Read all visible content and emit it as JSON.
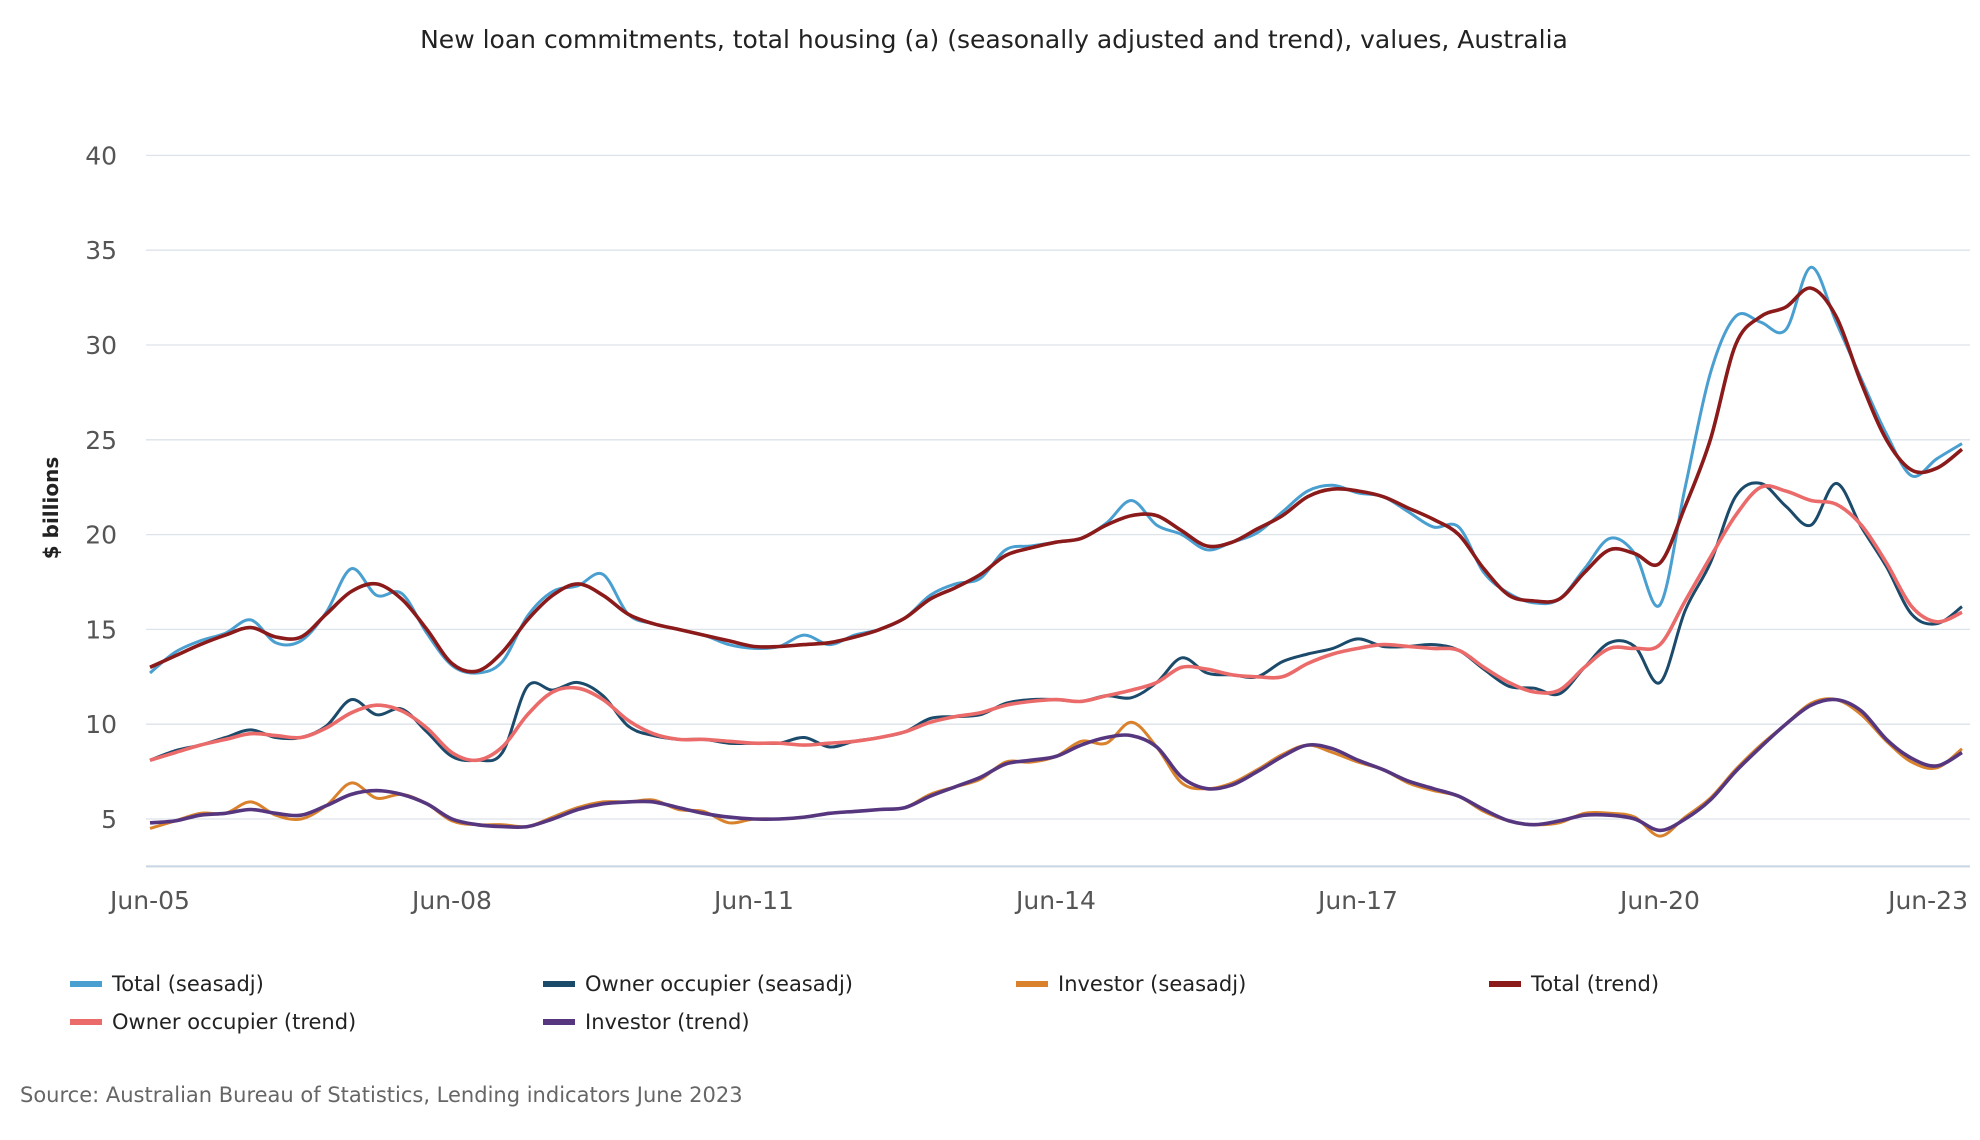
{
  "chart_data": {
    "type": "line",
    "title": "New loan commitments, total housing (a) (seasonally adjusted and trend), values, Australia",
    "xlabel": "",
    "ylabel": "$ billions",
    "ylim": [
      2.5,
      40
    ],
    "yticks": [
      5,
      10,
      15,
      20,
      25,
      30,
      35,
      40
    ],
    "xtick_labels": [
      "Jun-05",
      "Jun-08",
      "Jun-11",
      "Jun-14",
      "Jun-17",
      "Jun-20",
      "Jun-23"
    ],
    "x_frequency": "quarterly, Jun-05 to Jun-23",
    "grid": true,
    "legend_position": "bottom",
    "series": [
      {
        "name": "Total (seasadj)",
        "color": "#4a9fd1",
        "values": [
          12.7,
          13.8,
          14.4,
          14.8,
          15.5,
          14.3,
          14.4,
          15.9,
          18.2,
          16.8,
          16.9,
          14.8,
          13.1,
          12.7,
          13.3,
          15.7,
          17.0,
          17.3,
          17.9,
          15.8,
          15.3,
          15.0,
          14.7,
          14.2,
          14.0,
          14.1,
          14.7,
          14.2,
          14.7,
          15.0,
          15.6,
          16.8,
          17.4,
          17.7,
          19.2,
          19.4,
          19.6,
          19.8,
          20.6,
          21.8,
          20.5,
          20.0,
          19.2,
          19.6,
          20.1,
          21.2,
          22.3,
          22.6,
          22.2,
          22.0,
          21.2,
          20.4,
          20.4,
          18.0,
          16.9,
          16.4,
          16.6,
          18.2,
          19.8,
          19.0,
          16.3,
          22.5,
          28.5,
          31.5,
          31.2,
          30.8,
          34.1,
          31.2,
          28.2,
          25.3,
          23.1,
          24.0,
          24.8
        ]
      },
      {
        "name": "Owner occupier (seasadj)",
        "color": "#1b4a6b",
        "values": [
          8.1,
          8.6,
          8.9,
          9.3,
          9.7,
          9.3,
          9.3,
          9.9,
          11.3,
          10.5,
          10.8,
          9.6,
          8.3,
          8.1,
          8.5,
          12.0,
          11.8,
          12.2,
          11.5,
          9.9,
          9.4,
          9.2,
          9.2,
          9.0,
          9.0,
          9.0,
          9.3,
          8.8,
          9.1,
          9.3,
          9.6,
          10.3,
          10.4,
          10.5,
          11.1,
          11.3,
          11.3,
          11.2,
          11.5,
          11.4,
          12.2,
          13.5,
          12.7,
          12.6,
          12.5,
          13.3,
          13.7,
          14.0,
          14.5,
          14.1,
          14.1,
          14.2,
          13.9,
          12.9,
          12.0,
          11.9,
          11.6,
          13.0,
          14.3,
          14.1,
          12.2,
          16.0,
          18.5,
          22.0,
          22.7,
          21.5,
          20.5,
          22.7,
          20.4,
          18.3,
          15.8,
          15.3,
          16.2
        ]
      },
      {
        "name": "Investor (seasadj)",
        "color": "#d9822b",
        "values": [
          4.5,
          4.9,
          5.3,
          5.3,
          5.9,
          5.2,
          5.0,
          5.7,
          6.9,
          6.1,
          6.3,
          5.8,
          4.9,
          4.7,
          4.7,
          4.6,
          5.1,
          5.6,
          5.9,
          5.9,
          6.0,
          5.5,
          5.4,
          4.8,
          5.0,
          5.0,
          5.1,
          5.3,
          5.4,
          5.5,
          5.6,
          6.3,
          6.7,
          7.1,
          8.0,
          8.0,
          8.3,
          9.1,
          9.0,
          10.1,
          8.8,
          6.9,
          6.6,
          6.9,
          7.6,
          8.4,
          8.9,
          8.5,
          8.0,
          7.6,
          6.9,
          6.5,
          6.2,
          5.4,
          4.9,
          4.7,
          4.8,
          5.3,
          5.3,
          5.1,
          4.1,
          5.1,
          6.1,
          7.6,
          8.9,
          10.0,
          11.1,
          11.3,
          10.5,
          9.1,
          8.0,
          7.7,
          8.7
        ]
      },
      {
        "name": "Total (trend)",
        "color": "#8b1a1a",
        "values": [
          13.0,
          13.6,
          14.2,
          14.7,
          15.1,
          14.6,
          14.6,
          15.8,
          17.0,
          17.4,
          16.6,
          15.0,
          13.2,
          12.8,
          13.8,
          15.5,
          16.8,
          17.4,
          16.8,
          15.8,
          15.3,
          15.0,
          14.7,
          14.4,
          14.1,
          14.1,
          14.2,
          14.3,
          14.6,
          15.0,
          15.6,
          16.6,
          17.2,
          17.9,
          18.9,
          19.3,
          19.6,
          19.8,
          20.5,
          21.0,
          21.0,
          20.2,
          19.4,
          19.6,
          20.3,
          21.0,
          22.0,
          22.4,
          22.3,
          22.0,
          21.4,
          20.8,
          20.0,
          18.2,
          16.8,
          16.5,
          16.6,
          18.0,
          19.2,
          19.0,
          18.5,
          21.5,
          25.0,
          30.0,
          31.5,
          32.0,
          33.0,
          31.5,
          28.0,
          25.0,
          23.4,
          23.5,
          24.5
        ]
      },
      {
        "name": "Owner occupier (trend)",
        "color": "#eb6a6a",
        "values": [
          8.1,
          8.5,
          8.9,
          9.2,
          9.5,
          9.4,
          9.3,
          9.8,
          10.6,
          11.0,
          10.7,
          9.8,
          8.5,
          8.1,
          8.8,
          10.5,
          11.7,
          11.9,
          11.3,
          10.2,
          9.5,
          9.2,
          9.2,
          9.1,
          9.0,
          9.0,
          8.9,
          9.0,
          9.1,
          9.3,
          9.6,
          10.1,
          10.4,
          10.6,
          11.0,
          11.2,
          11.3,
          11.2,
          11.5,
          11.8,
          12.2,
          13.0,
          12.9,
          12.6,
          12.5,
          12.5,
          13.2,
          13.7,
          14.0,
          14.2,
          14.1,
          14.0,
          13.9,
          13.0,
          12.2,
          11.7,
          11.8,
          13.0,
          14.0,
          14.0,
          14.2,
          16.5,
          18.8,
          21.0,
          22.5,
          22.3,
          21.8,
          21.6,
          20.5,
          18.5,
          16.2,
          15.4,
          15.9
        ]
      },
      {
        "name": "Investor (trend)",
        "color": "#56377f",
        "values": [
          4.8,
          4.9,
          5.2,
          5.3,
          5.5,
          5.3,
          5.2,
          5.7,
          6.3,
          6.5,
          6.3,
          5.8,
          5.0,
          4.7,
          4.6,
          4.6,
          5.0,
          5.5,
          5.8,
          5.9,
          5.9,
          5.6,
          5.3,
          5.1,
          5.0,
          5.0,
          5.1,
          5.3,
          5.4,
          5.5,
          5.6,
          6.2,
          6.7,
          7.2,
          7.9,
          8.1,
          8.3,
          8.9,
          9.3,
          9.4,
          8.8,
          7.2,
          6.6,
          6.8,
          7.5,
          8.3,
          8.9,
          8.7,
          8.1,
          7.6,
          7.0,
          6.6,
          6.2,
          5.5,
          4.9,
          4.7,
          4.9,
          5.2,
          5.2,
          5.0,
          4.4,
          5.0,
          6.0,
          7.5,
          8.8,
          10.0,
          11.0,
          11.3,
          10.7,
          9.2,
          8.2,
          7.8,
          8.5
        ]
      }
    ]
  },
  "source": "Source: Australian Bureau of Statistics, Lending indicators June 2023"
}
